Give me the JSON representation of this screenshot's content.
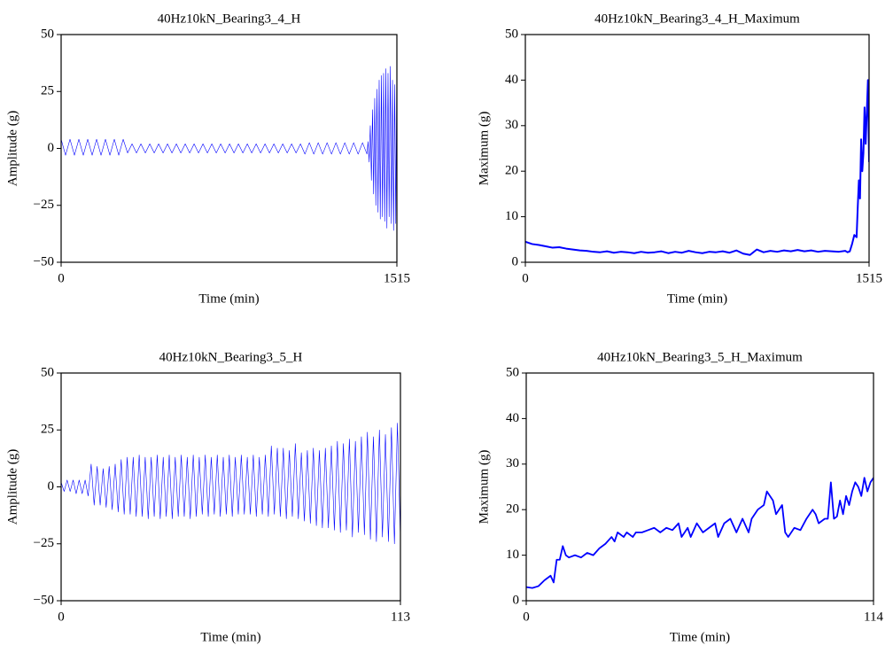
{
  "chart_data": [
    {
      "type": "line",
      "title": "40Hz10kN_Bearing3_4_H",
      "xlabel": "Time (min)",
      "ylabel": "Amplitude (g)",
      "color": "#0000ff",
      "xlim": [
        0,
        1515
      ],
      "ylim": [
        -50,
        50
      ],
      "xticks": [
        0,
        1515
      ],
      "yticks": [
        {
          "value": -50,
          "label": "−50"
        },
        {
          "value": -25,
          "label": "−25"
        },
        0,
        25,
        50
      ],
      "x": [
        0,
        20,
        40,
        60,
        80,
        100,
        120,
        140,
        160,
        180,
        200,
        220,
        240,
        260,
        280,
        300,
        320,
        340,
        360,
        380,
        400,
        420,
        440,
        460,
        480,
        500,
        520,
        540,
        560,
        580,
        600,
        620,
        640,
        660,
        680,
        700,
        720,
        740,
        760,
        780,
        800,
        820,
        840,
        860,
        880,
        900,
        920,
        940,
        960,
        980,
        1000,
        1020,
        1040,
        1060,
        1080,
        1100,
        1120,
        1140,
        1160,
        1180,
        1200,
        1220,
        1240,
        1260,
        1280,
        1300,
        1320,
        1340,
        1360,
        1380,
        1385,
        1390,
        1395,
        1400,
        1405,
        1410,
        1415,
        1420,
        1425,
        1430,
        1435,
        1440,
        1445,
        1450,
        1455,
        1460,
        1465,
        1470,
        1475,
        1480,
        1485,
        1490,
        1495,
        1500,
        1505,
        1510,
        1515
      ],
      "values": [
        4,
        -3,
        4,
        -3,
        4,
        -3,
        4,
        -3,
        4,
        -3,
        4,
        -3,
        4,
        -3,
        4,
        -2,
        2,
        -2,
        2,
        -2,
        2,
        -2,
        2,
        -2,
        2,
        -2,
        2,
        -2,
        2,
        -2,
        2,
        -2,
        2,
        -2,
        2,
        -2,
        2,
        -2,
        2,
        -2,
        2,
        -2,
        2,
        -2,
        2,
        -2,
        2,
        -2,
        2,
        -2,
        2,
        -2,
        2,
        -2,
        2,
        -2.5,
        2.5,
        -2.5,
        2.5,
        -2.5,
        2.5,
        -2.5,
        2.5,
        -2.5,
        2.5,
        -2.5,
        2.5,
        -2.5,
        2.5,
        -2.5,
        3,
        -6,
        10,
        -14,
        17,
        -20,
        22,
        -25,
        26,
        -28,
        30,
        -31,
        32,
        -30,
        33,
        -32,
        35,
        -35,
        33,
        -30,
        36,
        -33,
        30,
        -36,
        28,
        -33,
        40
      ]
    },
    {
      "type": "line",
      "title": "40Hz10kN_Bearing3_4_H_Maximum",
      "xlabel": "Time (min)",
      "ylabel": "Maximum (g)",
      "color": "#0000ff",
      "xlim": [
        0,
        1515
      ],
      "ylim": [
        0,
        50
      ],
      "xticks": [
        0,
        1515
      ],
      "yticks": [
        0,
        10,
        20,
        30,
        40,
        50
      ],
      "x": [
        0,
        30,
        60,
        90,
        120,
        150,
        180,
        210,
        240,
        270,
        300,
        330,
        360,
        390,
        420,
        450,
        480,
        510,
        540,
        570,
        600,
        630,
        660,
        690,
        720,
        750,
        780,
        810,
        840,
        870,
        900,
        930,
        960,
        990,
        1020,
        1050,
        1080,
        1110,
        1140,
        1170,
        1200,
        1230,
        1260,
        1290,
        1320,
        1350,
        1380,
        1410,
        1420,
        1430,
        1440,
        1450,
        1460,
        1465,
        1470,
        1475,
        1480,
        1485,
        1490,
        1495,
        1500,
        1505,
        1510,
        1515
      ],
      "values": [
        4.5,
        4,
        3.8,
        3.5,
        3.2,
        3.3,
        3,
        2.8,
        2.6,
        2.5,
        2.3,
        2.2,
        2.4,
        2.1,
        2.3,
        2.2,
        2.0,
        2.3,
        2.1,
        2.2,
        2.4,
        2.0,
        2.3,
        2.1,
        2.5,
        2.2,
        2.0,
        2.3,
        2.2,
        2.4,
        2.1,
        2.6,
        1.9,
        1.6,
        2.8,
        2.2,
        2.5,
        2.3,
        2.6,
        2.4,
        2.7,
        2.4,
        2.6,
        2.3,
        2.5,
        2.4,
        2.3,
        2.5,
        2.2,
        2.4,
        4,
        6,
        5.5,
        12,
        18,
        14,
        27,
        20,
        24,
        34,
        26,
        33,
        40,
        22
      ]
    },
    {
      "type": "line",
      "title": "40Hz10kN_Bearing3_5_H",
      "xlabel": "Time (min)",
      "ylabel": "Amplitude (g)",
      "color": "#0000ff",
      "xlim": [
        0,
        113
      ],
      "ylim": [
        -50,
        50
      ],
      "xticks": [
        0,
        113
      ],
      "yticks": [
        {
          "value": -50,
          "label": "−50"
        },
        {
          "value": -25,
          "label": "−25"
        },
        0,
        25,
        50
      ],
      "x": [
        0,
        1,
        2,
        3,
        4,
        5,
        6,
        7,
        8,
        9,
        10,
        11,
        12,
        13,
        14,
        15,
        16,
        17,
        18,
        19,
        20,
        21,
        22,
        23,
        24,
        25,
        26,
        27,
        28,
        29,
        30,
        31,
        32,
        33,
        34,
        35,
        36,
        37,
        38,
        39,
        40,
        41,
        42,
        43,
        44,
        45,
        46,
        47,
        48,
        49,
        50,
        51,
        52,
        53,
        54,
        55,
        56,
        57,
        58,
        59,
        60,
        61,
        62,
        63,
        64,
        65,
        66,
        67,
        68,
        69,
        70,
        71,
        72,
        73,
        74,
        75,
        76,
        77,
        78,
        79,
        80,
        81,
        82,
        83,
        84,
        85,
        86,
        87,
        88,
        89,
        90,
        91,
        92,
        93,
        94,
        95,
        96,
        97,
        98,
        99,
        100,
        101,
        102,
        103,
        104,
        105,
        106,
        107,
        108,
        109,
        110,
        111,
        112,
        113
      ],
      "values": [
        2,
        -2,
        3,
        -2,
        3,
        -3,
        3,
        -3,
        3,
        -4,
        10,
        -8,
        9,
        -8,
        8,
        -9,
        9,
        -10,
        10,
        -11,
        12,
        -12,
        13,
        -12,
        13,
        -13,
        14,
        -13,
        13,
        -14,
        13,
        -13,
        14,
        -14,
        13,
        -13,
        14,
        -14,
        13,
        -13,
        14,
        -13,
        13,
        -14,
        14,
        -13,
        13,
        -12,
        14,
        -13,
        13,
        -12,
        14,
        -13,
        13,
        -12,
        14,
        -13,
        13,
        -12,
        14,
        -12,
        13,
        -12,
        14,
        -13,
        13,
        -12,
        14,
        -13,
        18,
        -12,
        17,
        -13,
        17,
        -14,
        16,
        -13,
        19,
        -14,
        15,
        -15,
        16,
        -16,
        17,
        -17,
        16,
        -18,
        17,
        -18,
        18,
        -19,
        20,
        -20,
        19,
        -19,
        21,
        -22,
        20,
        -20,
        22,
        -21,
        24,
        -23,
        22,
        -24,
        25,
        -22,
        23,
        -24,
        26,
        -25,
        28,
        -23
      ]
    },
    {
      "type": "line",
      "title": "40Hz10kN_Bearing3_5_H_Maximum",
      "xlabel": "Time (min)",
      "ylabel": "Maximum (g)",
      "color": "#0000ff",
      "xlim": [
        0,
        114
      ],
      "ylim": [
        0,
        50
      ],
      "xticks": [
        0,
        114
      ],
      "yticks": [
        0,
        10,
        20,
        30,
        40,
        50
      ],
      "x": [
        0,
        2,
        4,
        6,
        8,
        9,
        10,
        11,
        12,
        13,
        14,
        16,
        18,
        20,
        22,
        24,
        26,
        28,
        29,
        30,
        32,
        33,
        35,
        36,
        38,
        40,
        42,
        44,
        46,
        48,
        50,
        51,
        53,
        54,
        56,
        58,
        60,
        62,
        63,
        65,
        67,
        69,
        71,
        73,
        74,
        76,
        78,
        79,
        81,
        82,
        84,
        85,
        86,
        88,
        90,
        92,
        94,
        95,
        96,
        98,
        99,
        100,
        101,
        102,
        103,
        104,
        105,
        106,
        107,
        108,
        109,
        110,
        111,
        112,
        113,
        114
      ],
      "values": [
        3,
        2.8,
        3.2,
        4.5,
        5.5,
        4,
        9,
        9,
        12,
        10,
        9.5,
        10,
        9.5,
        10.5,
        10,
        11.5,
        12.5,
        14,
        13,
        15,
        14,
        15,
        14,
        15,
        15,
        15.5,
        16,
        15,
        16,
        15.5,
        17,
        14,
        16,
        14,
        17,
        15,
        16,
        17,
        14,
        17,
        18,
        15,
        18,
        15,
        18,
        20,
        21,
        24,
        22,
        19,
        21,
        15,
        14,
        16,
        15.5,
        18,
        20,
        19,
        17,
        18,
        18,
        26,
        18,
        18.5,
        22,
        19,
        23,
        21,
        24,
        26,
        25,
        23,
        27,
        24,
        26,
        27
      ]
    }
  ]
}
